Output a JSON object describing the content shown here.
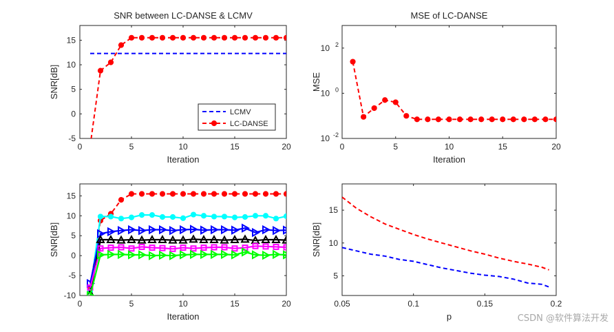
{
  "watermark": "CSDN @软件算法开发",
  "chart_data": [
    {
      "type": "line",
      "title": "SNR between LC-DANSE & LCMV",
      "xlabel": "Iteration",
      "ylabel": "SNR[dB]",
      "xlim": [
        0,
        20
      ],
      "ylim": [
        -5,
        18
      ],
      "xticks": [
        0,
        5,
        10,
        15,
        20
      ],
      "yticks": [
        -5,
        0,
        5,
        10,
        15
      ],
      "legend": "bottom-right",
      "series": [
        {
          "name": "LCMV",
          "color": "#0000ff",
          "style": "dashed",
          "marker": "none",
          "x": [
            1,
            20
          ],
          "y": [
            12.3,
            12.3
          ]
        },
        {
          "name": "LC-DANSE",
          "color": "#ff0000",
          "style": "dashed",
          "marker": "circle",
          "x": [
            1,
            2,
            3,
            4,
            5,
            6,
            7,
            8,
            9,
            10,
            11,
            12,
            13,
            14,
            15,
            16,
            17,
            18,
            19,
            20
          ],
          "y": [
            -6.5,
            8.8,
            10.5,
            14.0,
            15.5,
            15.5,
            15.5,
            15.5,
            15.5,
            15.5,
            15.5,
            15.5,
            15.5,
            15.5,
            15.5,
            15.5,
            15.5,
            15.5,
            15.5,
            15.5
          ]
        }
      ]
    },
    {
      "type": "line",
      "title": "MSE of LC-DANSE",
      "xlabel": "Iteration",
      "ylabel": "MSE",
      "xlim": [
        0,
        20
      ],
      "ylim": [
        0.01,
        1000
      ],
      "yscale": "log",
      "xticks": [
        0,
        5,
        10,
        15,
        20
      ],
      "yticks": [
        "10^-2",
        "10^0",
        "10^2"
      ],
      "series": [
        {
          "name": "",
          "color": "#ff0000",
          "style": "dashed",
          "marker": "circle",
          "x": [
            1,
            2,
            3,
            4,
            5,
            6,
            7,
            8,
            9,
            10,
            11,
            12,
            13,
            14,
            15,
            16,
            17,
            18,
            19,
            20
          ],
          "y": [
            25,
            0.09,
            0.22,
            0.5,
            0.4,
            0.1,
            0.07,
            0.07,
            0.07,
            0.07,
            0.07,
            0.07,
            0.07,
            0.07,
            0.07,
            0.07,
            0.07,
            0.07,
            0.07,
            0.07
          ]
        }
      ]
    },
    {
      "type": "line",
      "title": "",
      "xlabel": "Iteration",
      "ylabel": "SNR[dB]",
      "xlim": [
        0,
        20
      ],
      "ylim": [
        -10,
        18
      ],
      "xticks": [
        0,
        5,
        10,
        15,
        20
      ],
      "yticks": [
        -10,
        -5,
        0,
        5,
        10,
        15
      ],
      "series": [
        {
          "name": "",
          "color": "#ff0000",
          "style": "dashed",
          "marker": "circle",
          "x": [
            1,
            2,
            3,
            4,
            5,
            6,
            7,
            8,
            9,
            10,
            11,
            12,
            13,
            14,
            15,
            16,
            17,
            18,
            19,
            20
          ],
          "y": [
            -8,
            8.8,
            10.5,
            14.0,
            15.5,
            15.5,
            15.5,
            15.5,
            15.5,
            15.5,
            15.5,
            15.5,
            15.5,
            15.5,
            15.5,
            15.5,
            15.5,
            15.5,
            15.5,
            15.5
          ]
        },
        {
          "name": "",
          "color": "#00ffff",
          "style": "solid",
          "marker": "circle",
          "x": [
            1,
            2,
            3,
            4,
            5,
            6,
            7,
            8,
            9,
            10,
            11,
            12,
            13,
            14,
            15,
            16,
            17,
            18,
            19,
            20
          ],
          "y": [
            -9,
            9.8,
            9.8,
            9.3,
            9.6,
            10.2,
            10.2,
            9.7,
            9.7,
            9.4,
            10.3,
            10.0,
            9.8,
            9.8,
            9.6,
            9.7,
            10.0,
            10.0,
            9.3,
            9.9
          ]
        },
        {
          "name": "",
          "color": "#0000ff",
          "style": "solid",
          "marker": "triangle-right",
          "x": [
            1,
            2,
            3,
            4,
            5,
            6,
            7,
            8,
            9,
            10,
            11,
            12,
            13,
            14,
            15,
            16,
            17,
            18,
            19,
            20
          ],
          "y": [
            -7,
            5.5,
            6.0,
            6.3,
            6.5,
            6.3,
            6.5,
            6.5,
            6.3,
            6.5,
            6.6,
            6.4,
            6.5,
            6.5,
            6.4,
            6.9,
            5.8,
            6.5,
            6.3,
            6.4
          ]
        },
        {
          "name": "",
          "color": "#000000",
          "style": "solid",
          "marker": "triangle-up",
          "x": [
            1,
            2,
            3,
            4,
            5,
            6,
            7,
            8,
            9,
            10,
            11,
            12,
            13,
            14,
            15,
            16,
            17,
            18,
            19,
            20
          ],
          "y": [
            -9.5,
            4.0,
            4.0,
            3.9,
            4.0,
            3.9,
            4.0,
            4.0,
            3.9,
            3.9,
            4.1,
            4.0,
            4.0,
            3.9,
            4.0,
            4.1,
            3.8,
            4.0,
            4.0,
            3.9
          ]
        },
        {
          "name": "",
          "color": "#ff00ff",
          "style": "solid",
          "marker": "square",
          "x": [
            1,
            2,
            3,
            4,
            5,
            6,
            7,
            8,
            9,
            10,
            11,
            12,
            13,
            14,
            15,
            16,
            17,
            18,
            19,
            20
          ],
          "y": [
            -8,
            1.8,
            2.0,
            2.1,
            1.8,
            2.2,
            2.0,
            1.9,
            1.7,
            2.0,
            1.8,
            2.0,
            2.1,
            2.1,
            1.8,
            2.0,
            2.4,
            2.3,
            2.2,
            2.1
          ]
        },
        {
          "name": "",
          "color": "#00ff00",
          "style": "solid",
          "marker": "triangle-right",
          "x": [
            1,
            2,
            3,
            4,
            5,
            6,
            7,
            8,
            9,
            10,
            11,
            12,
            13,
            14,
            15,
            16,
            17,
            18,
            19,
            20
          ],
          "y": [
            -10,
            0.2,
            0.3,
            0.3,
            0.2,
            0.2,
            0.0,
            0.1,
            0.0,
            0.2,
            0.3,
            0.3,
            0.3,
            0.3,
            0.2,
            0.9,
            0.2,
            0.1,
            0.3,
            0.2
          ]
        }
      ]
    },
    {
      "type": "line",
      "title": "",
      "xlabel": "p",
      "ylabel": "SNR[dB]",
      "xlim": [
        0.05,
        0.2
      ],
      "ylim": [
        2,
        19
      ],
      "xticks": [
        0.05,
        0.1,
        0.15,
        0.2
      ],
      "yticks": [
        5,
        10,
        15
      ],
      "series": [
        {
          "name": "",
          "color": "#ff0000",
          "style": "dashed",
          "marker": "none",
          "x": [
            0.05,
            0.06,
            0.07,
            0.08,
            0.09,
            0.1,
            0.11,
            0.12,
            0.13,
            0.14,
            0.15,
            0.16,
            0.17,
            0.18,
            0.19,
            0.195
          ],
          "y": [
            17.0,
            15.3,
            14.0,
            12.9,
            12.1,
            11.3,
            10.6,
            10.0,
            9.4,
            8.8,
            8.3,
            7.7,
            7.2,
            6.8,
            6.3,
            5.9
          ]
        },
        {
          "name": "",
          "color": "#0000ff",
          "style": "dashed",
          "marker": "none",
          "x": [
            0.05,
            0.06,
            0.07,
            0.08,
            0.09,
            0.1,
            0.11,
            0.12,
            0.13,
            0.14,
            0.15,
            0.16,
            0.17,
            0.18,
            0.19,
            0.195
          ],
          "y": [
            9.3,
            8.8,
            8.3,
            8.0,
            7.5,
            7.2,
            6.7,
            6.2,
            5.8,
            5.4,
            5.1,
            4.9,
            4.5,
            3.9,
            3.7,
            3.3
          ]
        }
      ]
    }
  ]
}
